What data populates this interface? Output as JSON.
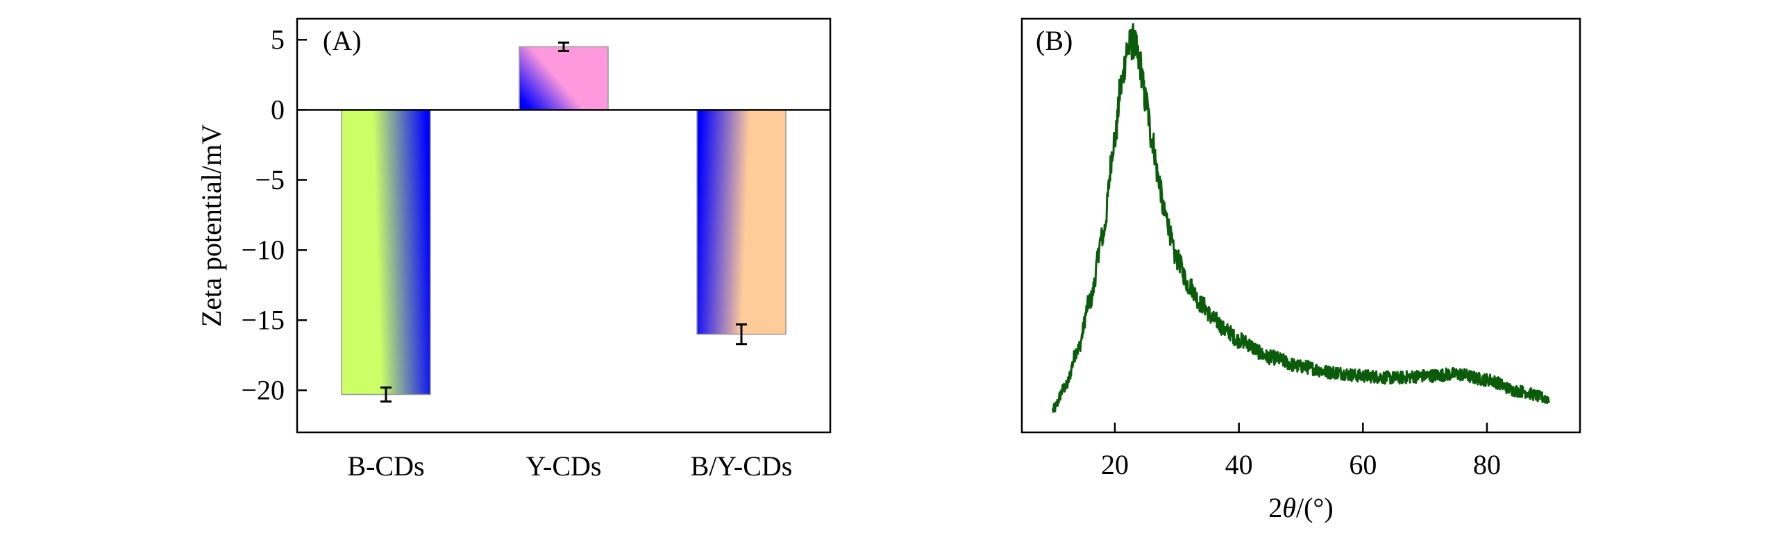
{
  "panel_labels": {
    "a": "(A)",
    "b": "(B)"
  },
  "chart_data": [
    {
      "type": "bar",
      "panel": "(A)",
      "title": "",
      "xlabel": "",
      "ylabel": "Zeta potential/mV",
      "ylim": [
        -23,
        6.5
      ],
      "yticks": [
        5,
        0,
        -5,
        -10,
        -15,
        -20
      ],
      "ytick_labels": [
        "5",
        "0",
        "−5",
        "−10",
        "−15",
        "−20"
      ],
      "categories": [
        "B-CDs",
        "Y-CDs",
        "B/Y-CDs"
      ],
      "values": [
        -20.3,
        4.5,
        -16.0
      ],
      "errors": [
        0.5,
        0.3,
        0.7
      ],
      "zero_line": true,
      "grid": false,
      "legend": "none",
      "bar_colors": [
        [
          "#ccff66",
          "#0000ff"
        ],
        [
          "#ff99dd",
          "#0000ff"
        ],
        [
          "#ffcc99",
          "#0000ff"
        ]
      ]
    },
    {
      "type": "line",
      "panel": "(B)",
      "title": "",
      "xlabel_prefix": "2",
      "xlabel_symbol": "θ",
      "xlabel_suffix": "/(°)",
      "ylabel": "",
      "xlim": [
        5,
        95
      ],
      "ylim": [
        0,
        1.1
      ],
      "xticks": [
        20,
        40,
        60,
        80
      ],
      "yticks_shown": false,
      "grid": false,
      "legend": "none",
      "line_color": "#0a5c0a",
      "x": [
        10,
        12,
        14,
        16,
        18,
        20,
        21,
        22,
        23,
        24,
        25,
        26,
        27,
        28,
        30,
        32,
        34,
        36,
        38,
        40,
        45,
        50,
        55,
        60,
        65,
        70,
        75,
        80,
        85,
        90
      ],
      "y": [
        0.06,
        0.12,
        0.22,
        0.35,
        0.52,
        0.78,
        0.92,
        1.02,
        1.04,
        0.98,
        0.88,
        0.78,
        0.68,
        0.58,
        0.46,
        0.39,
        0.34,
        0.3,
        0.27,
        0.245,
        0.2,
        0.175,
        0.16,
        0.15,
        0.145,
        0.15,
        0.155,
        0.14,
        0.11,
        0.09
      ]
    }
  ]
}
